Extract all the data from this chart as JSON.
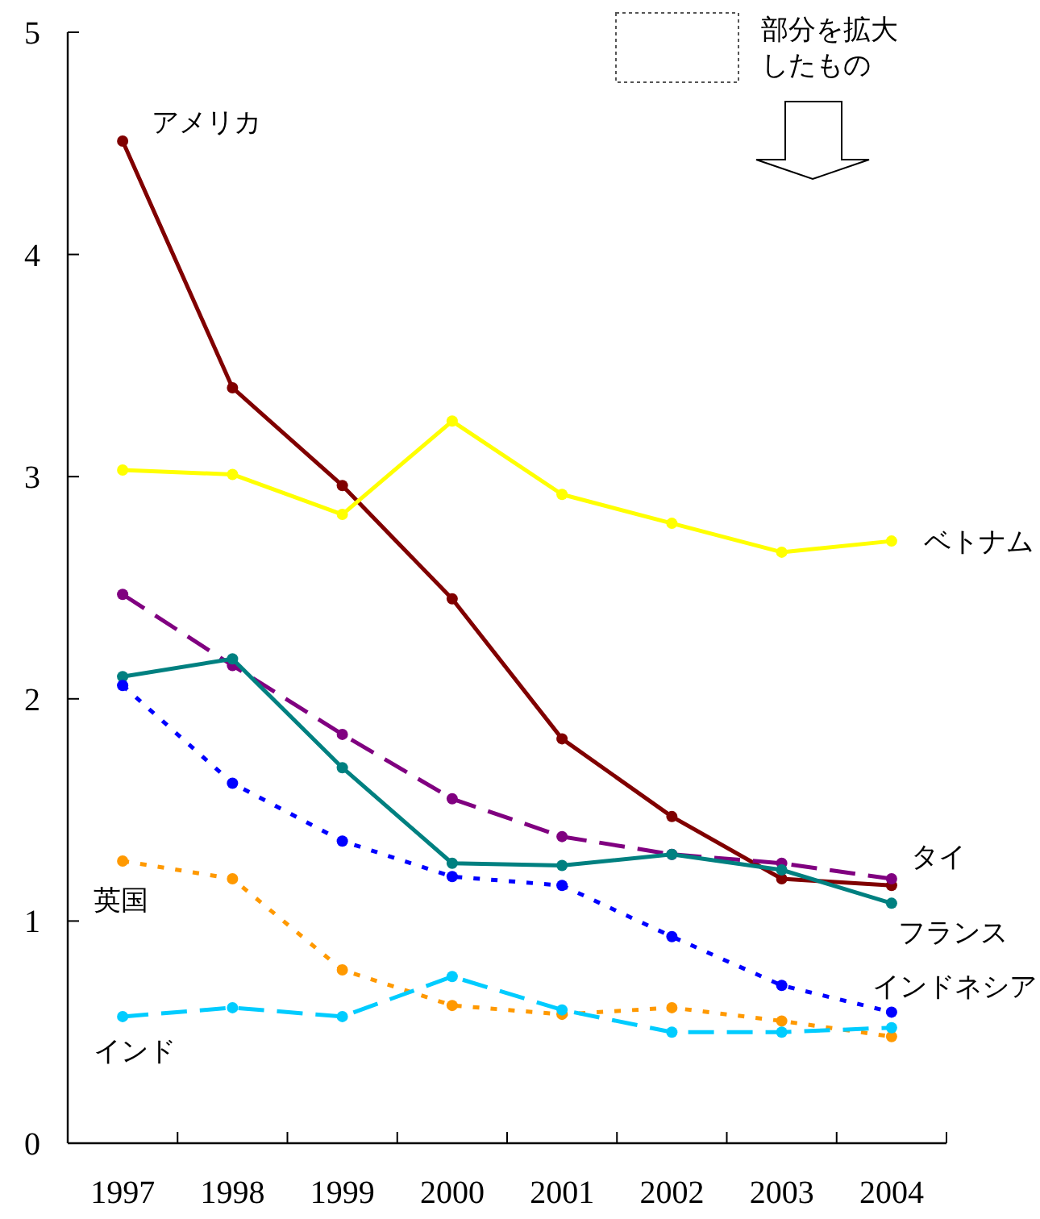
{
  "chart_data": {
    "type": "line",
    "categories": [
      "1997",
      "1998",
      "1999",
      "2000",
      "2001",
      "2002",
      "2003",
      "2004"
    ],
    "ylim": [
      0,
      5
    ],
    "yticks": [
      0,
      1,
      2,
      3,
      4,
      5
    ],
    "grid": false,
    "legend": false,
    "marker": "circle",
    "series": [
      {
        "name": "アメリカ",
        "color": "#800000",
        "line_style": "solid",
        "values": [
          4.51,
          3.4,
          2.96,
          2.45,
          1.82,
          1.47,
          1.19,
          1.16
        ]
      },
      {
        "name": "ベトナム",
        "color": "#ffff00",
        "line_style": "solid",
        "values": [
          3.03,
          3.01,
          2.83,
          3.25,
          2.92,
          2.79,
          2.66,
          2.71
        ]
      },
      {
        "name": "タイ",
        "color": "#800080",
        "line_style": "dashed",
        "values": [
          2.47,
          2.15,
          1.84,
          1.55,
          1.38,
          1.3,
          1.26,
          1.19
        ]
      },
      {
        "name": "フランス",
        "color": "#008080",
        "line_style": "solid",
        "values": [
          2.1,
          2.18,
          1.69,
          1.26,
          1.25,
          1.3,
          1.23,
          1.08
        ]
      },
      {
        "name": "インドネシア",
        "color": "#0000ff",
        "line_style": "dotted",
        "values": [
          2.06,
          1.62,
          1.36,
          1.2,
          1.16,
          0.93,
          0.71,
          0.59
        ]
      },
      {
        "name": "英国",
        "color": "#ff9900",
        "line_style": "dotted",
        "values": [
          1.27,
          1.19,
          0.78,
          0.62,
          0.58,
          0.61,
          0.55,
          0.48
        ]
      },
      {
        "name": "インド",
        "color": "#00ccff",
        "line_style": "dashed",
        "values": [
          0.57,
          0.61,
          0.57,
          0.75,
          0.6,
          0.5,
          0.5,
          0.52
        ]
      }
    ],
    "annotations": [
      "部分を拡大したもの"
    ]
  }
}
